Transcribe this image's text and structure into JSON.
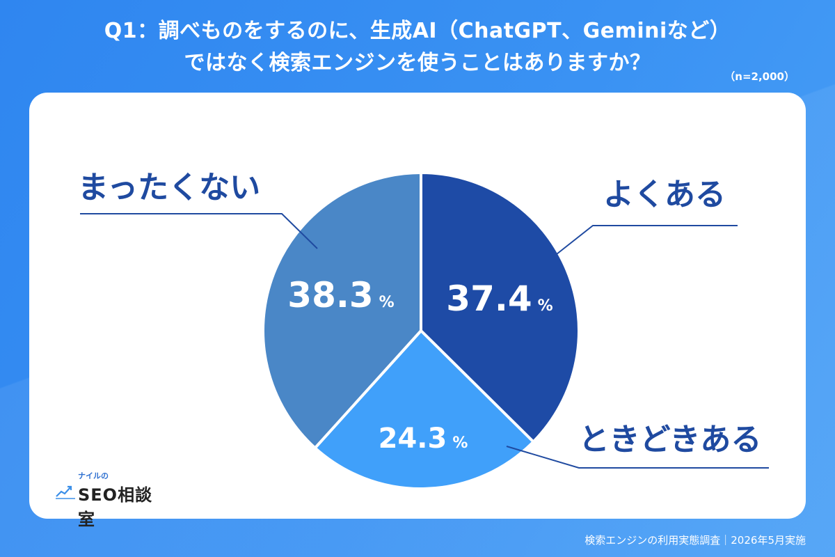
{
  "title": {
    "line1": "Q1：調べものをするのに、生成AI（ChatGPT、Geminiなど）",
    "line2": "ではなく検索エンジンを使うことはありますか？"
  },
  "sample_size": "（n=2,000）",
  "footer": "検索エンジンの利用実態調査｜2026年5月実施",
  "logo": {
    "small": "ナイルの",
    "main": "SEO相談室",
    "icon": "trend-chart-icon"
  },
  "colors": {
    "background": "#3a92f3",
    "label": "#1f4aa0"
  },
  "chart_data": {
    "type": "pie",
    "unit": "%",
    "slices": [
      {
        "label": "よくある",
        "value": 37.4,
        "value_text": "37.4",
        "color": "#1e4ba6"
      },
      {
        "label": "ときどきある",
        "value": 24.3,
        "value_text": "24.3",
        "color": "#40a0fa"
      },
      {
        "label": "まったくない",
        "value": 38.3,
        "value_text": "38.3",
        "color": "#4a87c7"
      }
    ]
  }
}
